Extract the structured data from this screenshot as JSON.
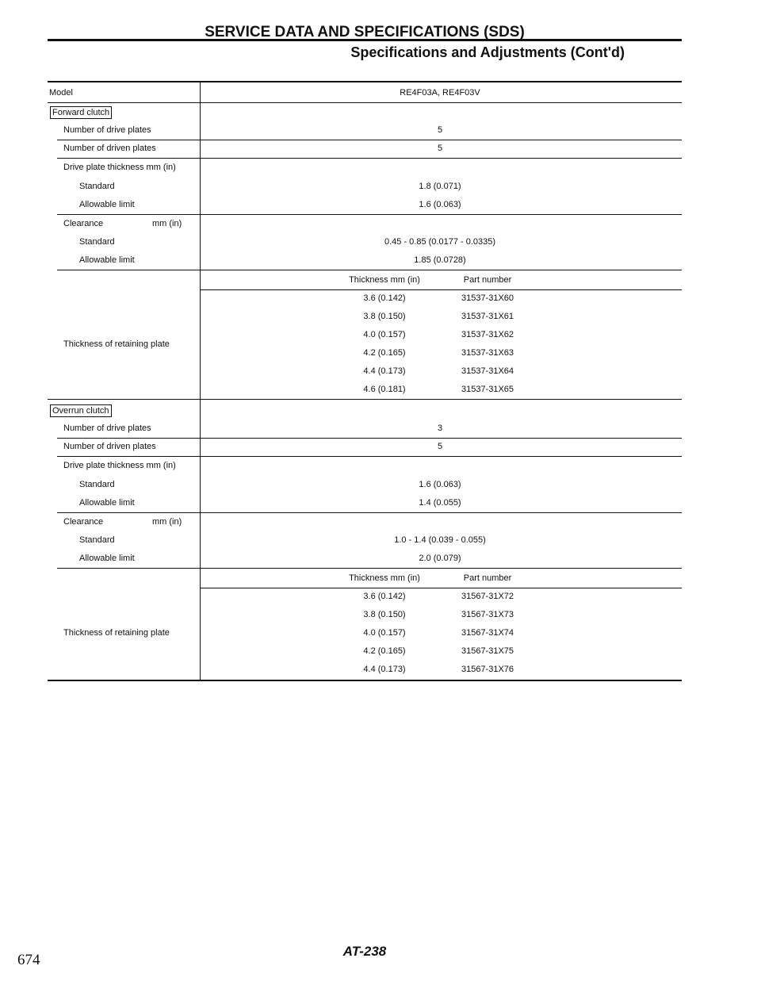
{
  "header": {
    "title": "SERVICE DATA AND SPECIFICATIONS (SDS)",
    "subtitle": "Specifications and Adjustments (Cont'd)"
  },
  "table": {
    "model_label": "Model",
    "model_value": "RE4F03A, RE4F03V",
    "sections": [
      {
        "name": "Forward clutch",
        "drive_plates_label": "Number of drive plates",
        "drive_plates": "5",
        "driven_plates_label": "Number of driven plates",
        "driven_plates": "5",
        "thickness_label": "Drive plate thickness mm (in)",
        "standard_label": "Standard",
        "thickness_standard": "1.8 (0.071)",
        "allowable_label": "Allowable limit",
        "thickness_allowable": "1.6 (0.063)",
        "clearance_label": "Clearance",
        "clearance_unit": "mm (in)",
        "clearance_standard": "0.45 - 0.85 (0.0177 - 0.0335)",
        "clearance_allowable": "1.85 (0.0728)",
        "retaining_label": "Thickness of retaining plate",
        "retaining_header_thickness": "Thickness   mm (in)",
        "retaining_header_part": "Part number",
        "retaining_rows": [
          {
            "thickness": "3.6 (0.142)",
            "part": "31537-31X60"
          },
          {
            "thickness": "3.8 (0.150)",
            "part": "31537-31X61"
          },
          {
            "thickness": "4.0 (0.157)",
            "part": "31537-31X62"
          },
          {
            "thickness": "4.2 (0.165)",
            "part": "31537-31X63"
          },
          {
            "thickness": "4.4 (0.173)",
            "part": "31537-31X64"
          },
          {
            "thickness": "4.6 (0.181)",
            "part": "31537-31X65"
          }
        ]
      },
      {
        "name": "Overrun clutch",
        "drive_plates_label": "Number of drive plates",
        "drive_plates": "3",
        "driven_plates_label": "Number of driven plates",
        "driven_plates": "5",
        "thickness_label": "Drive plate thickness mm (in)",
        "standard_label": "Standard",
        "thickness_standard": "1.6 (0.063)",
        "allowable_label": "Allowable limit",
        "thickness_allowable": "1.4 (0.055)",
        "clearance_label": "Clearance",
        "clearance_unit": "mm (in)",
        "clearance_standard": "1.0 - 1.4 (0.039 - 0.055)",
        "clearance_allowable": "2.0 (0.079)",
        "retaining_label": "Thickness of retaining plate",
        "retaining_header_thickness": "Thickness   mm (in)",
        "retaining_header_part": "Part number",
        "retaining_rows": [
          {
            "thickness": "3.6 (0.142)",
            "part": "31567-31X72"
          },
          {
            "thickness": "3.8 (0.150)",
            "part": "31567-31X73"
          },
          {
            "thickness": "4.0 (0.157)",
            "part": "31567-31X74"
          },
          {
            "thickness": "4.2 (0.165)",
            "part": "31567-31X75"
          },
          {
            "thickness": "4.4 (0.173)",
            "part": "31567-31X76"
          }
        ]
      }
    ]
  },
  "footer": {
    "page_code": "AT-238",
    "book_page": "674"
  }
}
